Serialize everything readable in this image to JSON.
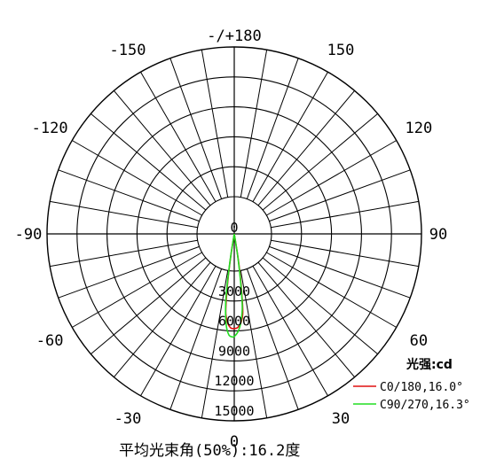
{
  "chart_data": {
    "type": "polar",
    "angle_labels": [
      {
        "label": "-/+180",
        "angle": 180
      },
      {
        "label": "150",
        "angle": 150
      },
      {
        "label": "-150",
        "angle": -150
      },
      {
        "label": "120",
        "angle": 120
      },
      {
        "label": "-120",
        "angle": -120
      },
      {
        "label": "90",
        "angle": 90
      },
      {
        "label": "-90",
        "angle": -90
      },
      {
        "label": "60",
        "angle": 60
      },
      {
        "label": "-60",
        "angle": -60
      },
      {
        "label": "30",
        "angle": 30
      },
      {
        "label": "-30",
        "angle": -30
      },
      {
        "label": "0",
        "angle": 0
      }
    ],
    "radial_ticks": [
      {
        "label": "0",
        "value": 0
      },
      {
        "label": "3000",
        "value": 3000
      },
      {
        "label": "6000",
        "value": 6000
      },
      {
        "label": "9000",
        "value": 9000
      },
      {
        "label": "12000",
        "value": 12000
      },
      {
        "label": "15000",
        "value": 15000
      }
    ],
    "rmax": 15000,
    "legend_title": "光强:cd",
    "series": [
      {
        "name": "C0/180,16.0°",
        "color": "#e01010",
        "points": [
          {
            "angle": -9,
            "value": 2200
          },
          {
            "angle": -8,
            "value": 4500
          },
          {
            "angle": -7,
            "value": 7000
          },
          {
            "angle": -6,
            "value": 8700
          },
          {
            "angle": -4,
            "value": 9700
          },
          {
            "angle": -2,
            "value": 10150
          },
          {
            "angle": 0,
            "value": 10200
          },
          {
            "angle": 2,
            "value": 10100
          },
          {
            "angle": 4,
            "value": 9700
          },
          {
            "angle": 6,
            "value": 8700
          },
          {
            "angle": 7,
            "value": 7000
          },
          {
            "angle": 8,
            "value": 4800
          },
          {
            "angle": 9,
            "value": 2500
          }
        ]
      },
      {
        "name": "C90/270,16.3°",
        "color": "#22dd22",
        "points": [
          {
            "angle": -9,
            "value": 2500
          },
          {
            "angle": -8,
            "value": 5200
          },
          {
            "angle": -7,
            "value": 7600
          },
          {
            "angle": -5,
            "value": 9900
          },
          {
            "angle": -3,
            "value": 10900
          },
          {
            "angle": -1,
            "value": 11100
          },
          {
            "angle": 0,
            "value": 11050
          },
          {
            "angle": 2,
            "value": 10600
          },
          {
            "angle": 4,
            "value": 9700
          },
          {
            "angle": 6,
            "value": 8200
          },
          {
            "angle": 7,
            "value": 6500
          },
          {
            "angle": 8,
            "value": 4200
          },
          {
            "angle": 9,
            "value": 2200
          }
        ]
      }
    ],
    "caption": "平均光束角(50%):16.2度"
  }
}
